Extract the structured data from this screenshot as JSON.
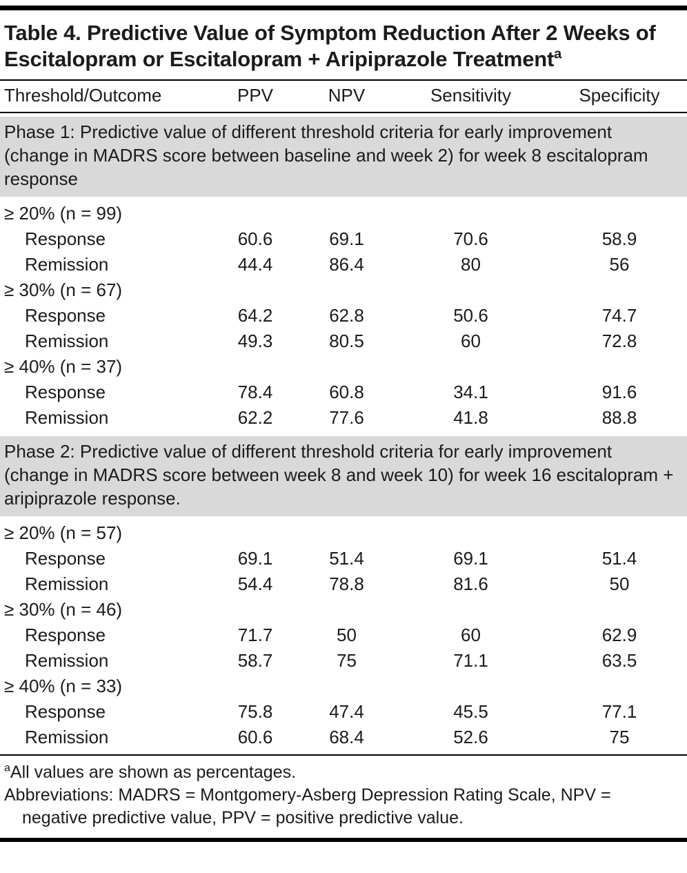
{
  "title": {
    "text": "Table 4. Predictive Value of Symptom Reduction After 2 Weeks of Escitalopram or Escitalopram + Aripiprazole Treatment",
    "superscript": "a"
  },
  "columns": [
    "Threshold/Outcome",
    "PPV",
    "NPV",
    "Sensitivity",
    "Specificity"
  ],
  "sections": [
    {
      "header": "Phase 1: Predictive value of different threshold criteria for early improvement (change in MADRS score between baseline and week 2) for week 8 escitalopram response",
      "groups": [
        {
          "threshold": "≥ 20% (n = 99)",
          "rows": [
            {
              "label": "Response",
              "values": [
                "60.6",
                "69.1",
                "70.6",
                "58.9"
              ]
            },
            {
              "label": "Remission",
              "values": [
                "44.4",
                "86.4",
                "80",
                "56"
              ]
            }
          ]
        },
        {
          "threshold": "≥ 30% (n = 67)",
          "rows": [
            {
              "label": "Response",
              "values": [
                "64.2",
                "62.8",
                "50.6",
                "74.7"
              ]
            },
            {
              "label": "Remission",
              "values": [
                "49.3",
                "80.5",
                "60",
                "72.8"
              ]
            }
          ]
        },
        {
          "threshold": "≥ 40% (n = 37)",
          "rows": [
            {
              "label": "Response",
              "values": [
                "78.4",
                "60.8",
                "34.1",
                "91.6"
              ]
            },
            {
              "label": "Remission",
              "values": [
                "62.2",
                "77.6",
                "41.8",
                "88.8"
              ]
            }
          ]
        }
      ]
    },
    {
      "header": "Phase 2: Predictive value of different threshold criteria for early improvement (change in MADRS score between week 8 and week 10) for week 16 escitalopram + aripiprazole response.",
      "groups": [
        {
          "threshold": "≥ 20% (n = 57)",
          "rows": [
            {
              "label": "Response",
              "values": [
                "69.1",
                "51.4",
                "69.1",
                "51.4"
              ]
            },
            {
              "label": "Remission",
              "values": [
                "54.4",
                "78.8",
                "81.6",
                "50"
              ]
            }
          ]
        },
        {
          "threshold": "≥ 30% (n = 46)",
          "rows": [
            {
              "label": "Response",
              "values": [
                "71.7",
                "50",
                "60",
                "62.9"
              ]
            },
            {
              "label": "Remission",
              "values": [
                "58.7",
                "75",
                "71.1",
                "63.5"
              ]
            }
          ]
        },
        {
          "threshold": "≥ 40% (n = 33)",
          "rows": [
            {
              "label": "Response",
              "values": [
                "75.8",
                "47.4",
                "45.5",
                "77.1"
              ]
            },
            {
              "label": "Remission",
              "values": [
                "60.6",
                "68.4",
                "52.6",
                "75"
              ]
            }
          ]
        }
      ]
    }
  ],
  "footnotes": {
    "a_marker": "a",
    "a_text": "All values are shown as percentages.",
    "abbreviations": "Abbreviations: MADRS = Montgomery-Asberg Depression Rating Scale, NPV = negative predictive value, PPV = positive predictive value."
  },
  "colors": {
    "section_band": "#d9d9d9",
    "rule": "#000000",
    "text": "#1b1b1b"
  }
}
